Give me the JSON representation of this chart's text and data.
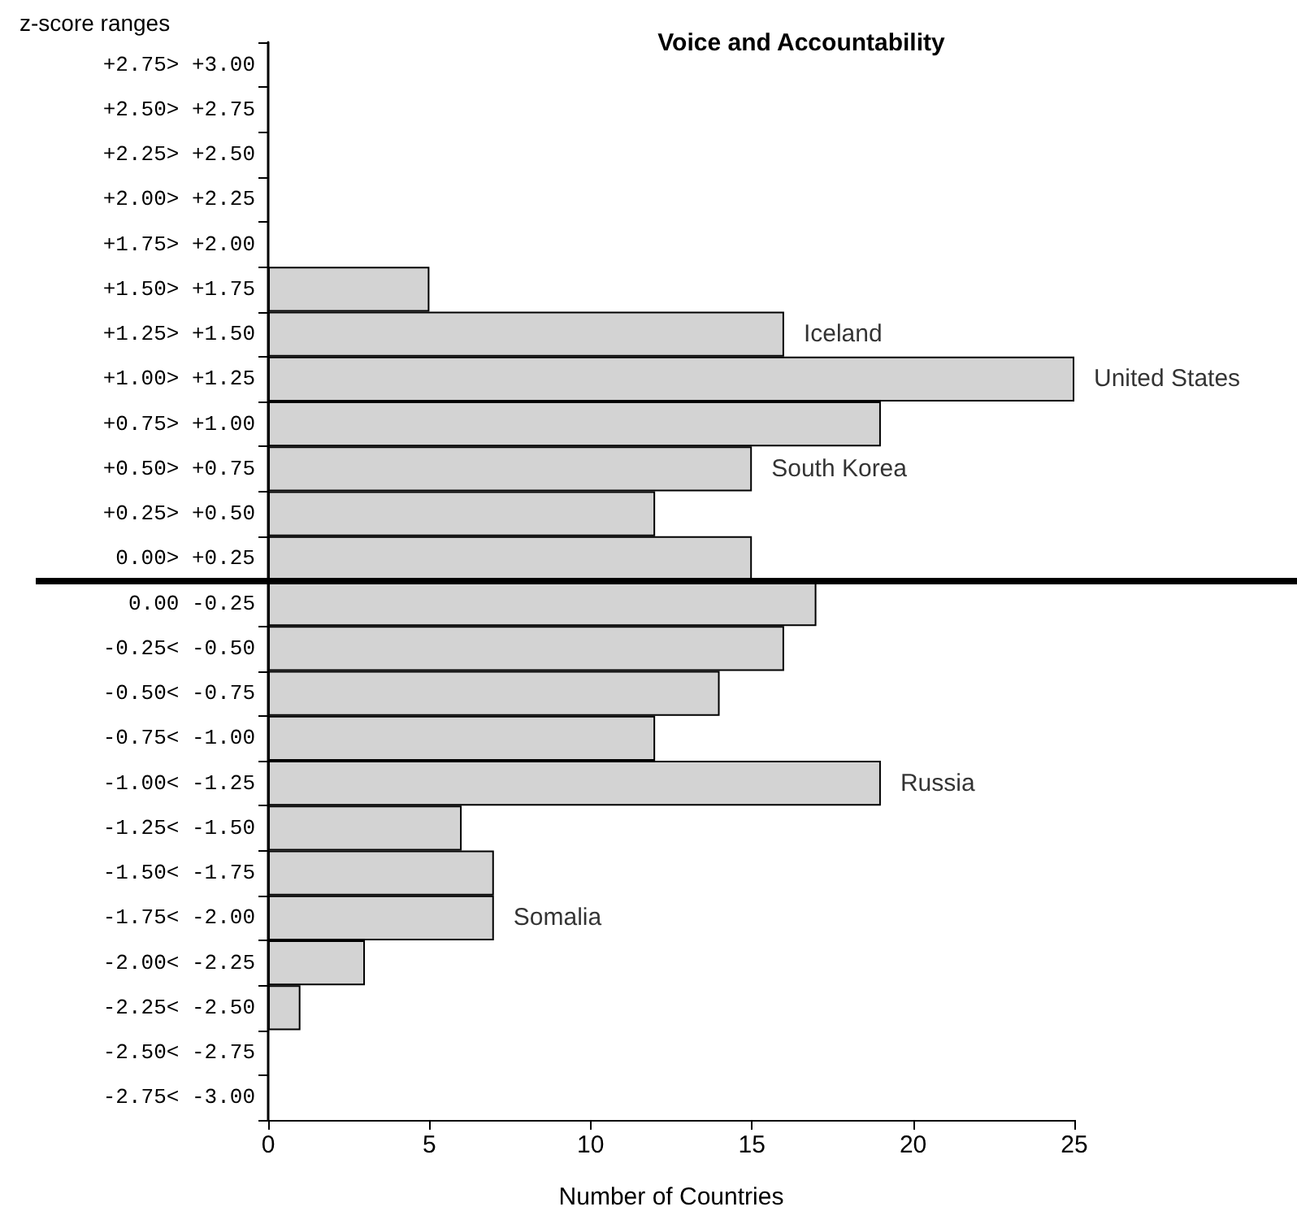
{
  "chart_data": {
    "type": "bar",
    "orientation": "horizontal",
    "title": "Voice and Accountability",
    "xlabel": "Number of Countries",
    "ylabel": "z-score ranges",
    "categories": [
      "+2.75> +3.00",
      "+2.50> +2.75",
      "+2.25> +2.50",
      "+2.00> +2.25",
      "+1.75> +2.00",
      "+1.50> +1.75",
      "+1.25> +1.50",
      "+1.00> +1.25",
      "+0.75> +1.00",
      "+0.50> +0.75",
      "+0.25> +0.50",
      "0.00> +0.25",
      "0.00 -0.25",
      "-0.25< -0.50",
      "-0.50< -0.75",
      "-0.75< -1.00",
      "-1.00< -1.25",
      "-1.25< -1.50",
      "-1.50< -1.75",
      "-1.75< -2.00",
      "-2.00< -2.25",
      "-2.25< -2.50",
      "-2.50< -2.75",
      "-2.75< -3.00"
    ],
    "values": [
      0,
      0,
      0,
      0,
      0,
      5,
      16,
      25,
      19,
      15,
      12,
      15,
      17,
      16,
      14,
      12,
      19,
      6,
      7,
      7,
      3,
      1,
      0,
      0
    ],
    "color": "#d3d3d3",
    "xlim": [
      0,
      25
    ],
    "xticks": [
      0,
      5,
      10,
      15,
      20,
      25
    ],
    "grid": false,
    "ref_lines": [
      {
        "axis": "y",
        "value": "0.00> +0.25",
        "color": "#000000"
      }
    ],
    "annotations": [
      {
        "text": "Iceland",
        "x": 16,
        "y": "+1.25> +1.50"
      },
      {
        "text": "United States",
        "x": 25,
        "y": "+1.00> +1.25"
      },
      {
        "text": "South Korea",
        "x": 15,
        "y": "+0.50> +0.75"
      },
      {
        "text": "Russia",
        "x": 19,
        "y": "-1.00< -1.25"
      },
      {
        "text": "Somalia",
        "x": 7,
        "y": "-1.75< -2.00"
      }
    ]
  }
}
